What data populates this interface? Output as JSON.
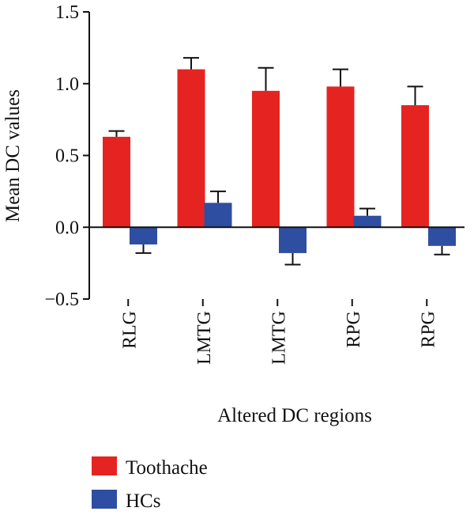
{
  "chart_data": {
    "type": "bar",
    "title": "",
    "xlabel": "Altered DC regions",
    "ylabel": "Mean DC values",
    "ylim": [
      -0.5,
      1.5
    ],
    "yticks": [
      -0.5,
      0.0,
      0.5,
      1.0,
      1.5
    ],
    "ytick_labels": [
      "−0.5",
      "0.0",
      "0.5",
      "1.0",
      "1.5"
    ],
    "categories": [
      "RLG",
      "LMTG",
      "LMTG",
      "RPG",
      "RPG"
    ],
    "error_bar_direction": "away from zero (upper for positive, lower for negative)",
    "legend_position": "bottom-left",
    "grid": false,
    "series": [
      {
        "name": "Toothache",
        "color": "#e52421",
        "values": [
          0.63,
          1.1,
          0.95,
          0.98,
          0.85
        ],
        "errors": [
          0.04,
          0.08,
          0.16,
          0.12,
          0.13
        ]
      },
      {
        "name": "HCs",
        "color": "#2e4ea1",
        "values": [
          -0.12,
          0.17,
          -0.18,
          0.08,
          -0.13
        ],
        "errors": [
          0.06,
          0.08,
          0.08,
          0.05,
          0.06
        ]
      }
    ]
  }
}
